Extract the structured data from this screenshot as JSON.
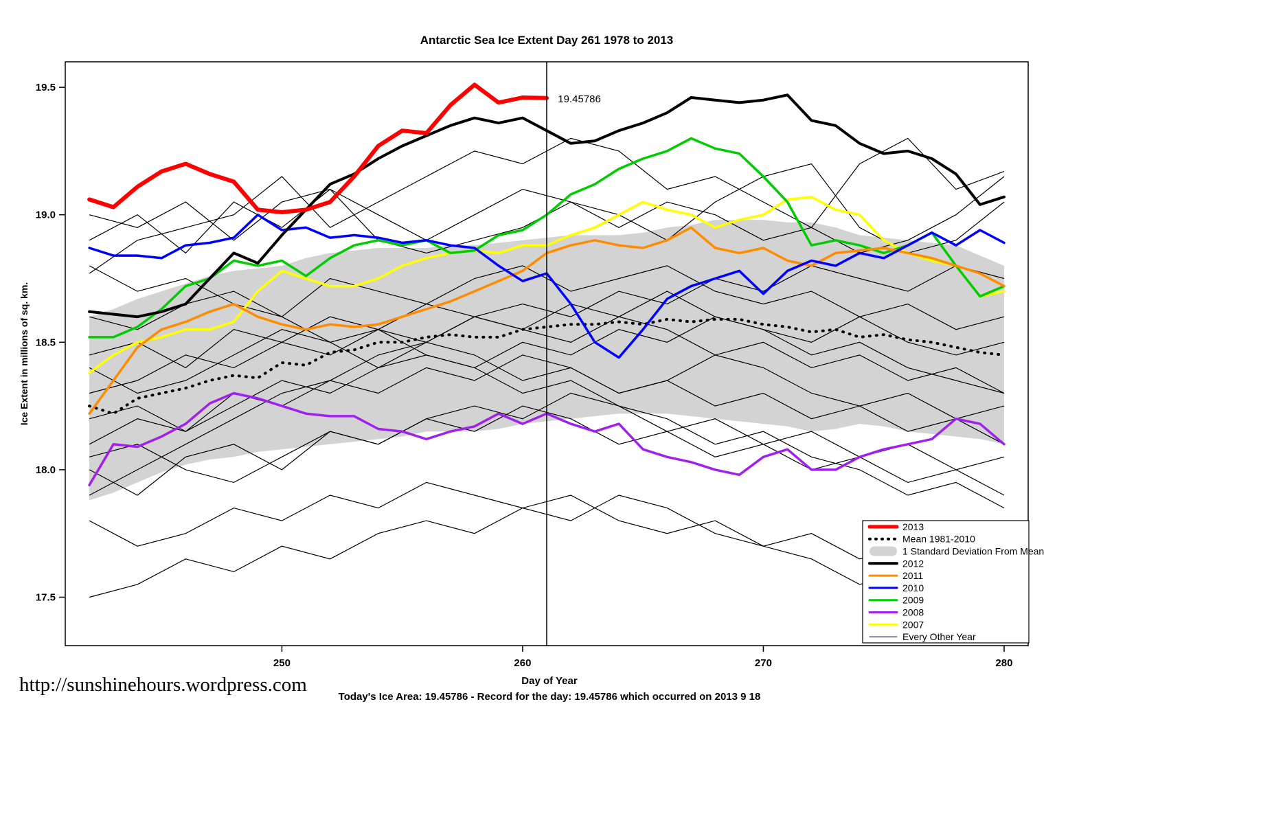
{
  "page": {
    "url_text": "http://sunshinehours.wordpress.com",
    "footer_line": "Today's Ice Area: 19.45786  - Record for the day: 19.45786 which occurred on 2013 9 18"
  },
  "chart_data": {
    "type": "line",
    "title": "Antarctic Sea Ice Extent Day 261 1978 to 2013",
    "xlabel": "Day of Year",
    "ylabel": "Ice Extent in millions of sq. km.",
    "xlim": [
      241,
      281
    ],
    "ylim": [
      17.31,
      19.6
    ],
    "x_ticks": [
      250,
      260,
      270,
      280
    ],
    "x_tick_labels": [
      "250",
      "260",
      "270",
      "280"
    ],
    "y_ticks": [
      17.5,
      18.0,
      18.5,
      19.0,
      19.5
    ],
    "y_tick_labels": [
      "17.5",
      "18.0",
      "18.5",
      "19.0",
      "19.5"
    ],
    "grid": false,
    "vline_day": 261,
    "annotation": {
      "text": "19.45786",
      "day": 261.35,
      "value": 19.455,
      "color": "#FF0000"
    },
    "band": {
      "label": "1 Standard Deviation From Mean",
      "color": "#D3D3D3",
      "start_day": 242,
      "step": 1,
      "upper": [
        18.6,
        18.63,
        18.67,
        18.7,
        18.73,
        18.76,
        18.78,
        18.79,
        18.8,
        18.83,
        18.85,
        18.86,
        18.87,
        18.87,
        18.87,
        18.88,
        18.88,
        18.89,
        18.9,
        18.91,
        18.92,
        18.92,
        18.92,
        18.93,
        18.95,
        18.96,
        18.98,
        18.98,
        18.98,
        18.97,
        18.97,
        18.95,
        18.92,
        18.91,
        18.9,
        18.89,
        18.88,
        18.84,
        18.8
      ],
      "lower": [
        17.88,
        17.91,
        17.95,
        17.99,
        18.02,
        18.04,
        18.05,
        18.07,
        18.08,
        18.09,
        18.1,
        18.11,
        18.12,
        18.13,
        18.15,
        18.15,
        18.15,
        18.16,
        18.18,
        18.19,
        18.2,
        18.21,
        18.22,
        18.22,
        18.22,
        18.21,
        18.2,
        18.19,
        18.18,
        18.17,
        18.15,
        18.16,
        18.18,
        18.17,
        18.15,
        18.14,
        18.13,
        18.12,
        18.1
      ]
    },
    "series": [
      {
        "name": "Mean 1981-2010",
        "color": "#000000",
        "width": 4,
        "dotted": true,
        "start_day": 242,
        "step": 1,
        "values": [
          18.25,
          18.22,
          18.28,
          18.3,
          18.32,
          18.35,
          18.37,
          18.36,
          18.42,
          18.41,
          18.46,
          18.47,
          18.5,
          18.5,
          18.52,
          18.53,
          18.52,
          18.52,
          18.55,
          18.56,
          18.57,
          18.57,
          18.58,
          18.57,
          18.59,
          18.58,
          18.59,
          18.59,
          18.57,
          18.56,
          18.54,
          18.55,
          18.52,
          18.53,
          18.51,
          18.5,
          18.48,
          18.46,
          18.45
        ]
      },
      {
        "name": "2007",
        "color": "#FFFF00",
        "width": 3.5,
        "dotted": false,
        "start_day": 242,
        "step": 1,
        "values": [
          18.38,
          18.45,
          18.5,
          18.52,
          18.55,
          18.55,
          18.58,
          18.7,
          18.78,
          18.75,
          18.72,
          18.72,
          18.75,
          18.8,
          18.83,
          18.85,
          18.86,
          18.85,
          18.88,
          18.88,
          18.92,
          18.95,
          19.0,
          19.05,
          19.02,
          19.0,
          18.95,
          18.98,
          19.0,
          19.06,
          19.07,
          19.02,
          19.0,
          18.9,
          18.85,
          18.82,
          18.8,
          18.68,
          18.7
        ]
      },
      {
        "name": "2008",
        "color": "#A020F0",
        "width": 3.5,
        "dotted": false,
        "start_day": 242,
        "step": 1,
        "values": [
          17.94,
          18.1,
          18.09,
          18.13,
          18.18,
          18.26,
          18.3,
          18.28,
          18.25,
          18.22,
          18.21,
          18.21,
          18.16,
          18.15,
          18.12,
          18.15,
          18.17,
          18.22,
          18.18,
          18.22,
          18.18,
          18.15,
          18.18,
          18.08,
          18.05,
          18.03,
          18.0,
          17.98,
          18.05,
          18.08,
          18.0,
          18.0,
          18.05,
          18.08,
          18.1,
          18.12,
          18.2,
          18.18,
          18.1
        ]
      },
      {
        "name": "2009",
        "color": "#00CC00",
        "width": 3.5,
        "dotted": false,
        "start_day": 242,
        "step": 1,
        "values": [
          18.52,
          18.52,
          18.56,
          18.63,
          18.72,
          18.75,
          18.82,
          18.8,
          18.82,
          18.76,
          18.83,
          18.88,
          18.9,
          18.88,
          18.9,
          18.85,
          18.86,
          18.92,
          18.94,
          19.0,
          19.08,
          19.12,
          19.18,
          19.22,
          19.25,
          19.3,
          19.26,
          19.24,
          19.15,
          19.05,
          18.88,
          18.9,
          18.88,
          18.85,
          18.88,
          18.93,
          18.8,
          18.68,
          18.72
        ]
      },
      {
        "name": "2011",
        "color": "#FF8C00",
        "width": 3.5,
        "dotted": false,
        "start_day": 242,
        "step": 1,
        "values": [
          18.22,
          18.35,
          18.48,
          18.55,
          18.58,
          18.62,
          18.65,
          18.6,
          18.57,
          18.55,
          18.57,
          18.56,
          18.57,
          18.6,
          18.63,
          18.66,
          18.7,
          18.74,
          18.78,
          18.85,
          18.88,
          18.9,
          18.88,
          18.87,
          18.9,
          18.95,
          18.87,
          18.85,
          18.87,
          18.82,
          18.8,
          18.85,
          18.86,
          18.87,
          18.85,
          18.83,
          18.8,
          18.77,
          18.72
        ]
      },
      {
        "name": "2010",
        "color": "#0000FF",
        "width": 3.5,
        "dotted": false,
        "start_day": 242,
        "step": 1,
        "values": [
          18.87,
          18.84,
          18.84,
          18.83,
          18.88,
          18.89,
          18.91,
          19.0,
          18.94,
          18.95,
          18.91,
          18.92,
          18.91,
          18.89,
          18.9,
          18.88,
          18.87,
          18.8,
          18.74,
          18.77,
          18.65,
          18.5,
          18.44,
          18.55,
          18.67,
          18.72,
          18.75,
          18.78,
          18.69,
          18.78,
          18.82,
          18.8,
          18.85,
          18.83,
          18.88,
          18.93,
          18.88,
          18.94,
          18.89
        ]
      },
      {
        "name": "2012",
        "color": "#000000",
        "width": 4,
        "dotted": false,
        "start_day": 242,
        "step": 1,
        "values": [
          18.62,
          18.61,
          18.6,
          18.62,
          18.65,
          18.75,
          18.85,
          18.81,
          18.92,
          19.02,
          19.12,
          19.16,
          19.22,
          19.27,
          19.31,
          19.35,
          19.38,
          19.36,
          19.38,
          19.33,
          19.28,
          19.29,
          19.33,
          19.36,
          19.4,
          19.46,
          19.45,
          19.44,
          19.45,
          19.47,
          19.37,
          19.35,
          19.28,
          19.24,
          19.25,
          19.22,
          19.16,
          19.04,
          19.07
        ]
      },
      {
        "name": "2013",
        "color": "#FF0000",
        "width": 6,
        "dotted": false,
        "start_day": 242,
        "step": 1,
        "values": [
          19.06,
          19.03,
          19.11,
          19.17,
          19.2,
          19.16,
          19.13,
          19.02,
          19.01,
          19.02,
          19.05,
          19.15,
          19.27,
          19.33,
          19.32,
          19.43,
          19.51,
          19.44,
          19.46,
          19.458
        ]
      }
    ],
    "other_years": {
      "label": "Every Other Year",
      "color": "#000000",
      "width": 1.2,
      "start_day": 242,
      "step": 2,
      "lines": [
        [
          18.77,
          18.9,
          18.95,
          19.0,
          19.15,
          18.95,
          19.05,
          19.15,
          19.25,
          19.2,
          19.3,
          19.25,
          19.1,
          19.15,
          19.05,
          18.95,
          19.2,
          19.3,
          19.1,
          19.17
        ],
        [
          19.0,
          18.95,
          19.05,
          18.9,
          19.05,
          19.1,
          18.9,
          18.85,
          18.9,
          18.95,
          19.05,
          19.0,
          18.9,
          19.05,
          19.15,
          19.2,
          18.95,
          18.85,
          18.9,
          19.05
        ],
        [
          18.6,
          18.55,
          18.65,
          18.7,
          18.6,
          18.75,
          18.7,
          18.65,
          18.75,
          18.8,
          18.7,
          18.75,
          18.8,
          18.7,
          18.65,
          18.7,
          18.6,
          18.65,
          18.55,
          18.6
        ],
        [
          18.45,
          18.5,
          18.4,
          18.55,
          18.5,
          18.6,
          18.55,
          18.65,
          18.6,
          18.55,
          18.65,
          18.6,
          18.7,
          18.6,
          18.55,
          18.5,
          18.6,
          18.5,
          18.45,
          18.5
        ],
        [
          18.3,
          18.35,
          18.45,
          18.4,
          18.5,
          18.45,
          18.55,
          18.5,
          18.6,
          18.55,
          18.5,
          18.6,
          18.55,
          18.45,
          18.5,
          18.4,
          18.45,
          18.35,
          18.4,
          18.3
        ],
        [
          18.2,
          18.25,
          18.15,
          18.3,
          18.25,
          18.35,
          18.3,
          18.4,
          18.35,
          18.45,
          18.4,
          18.3,
          18.35,
          18.25,
          18.3,
          18.2,
          18.25,
          18.15,
          18.2,
          18.1
        ],
        [
          18.0,
          17.9,
          18.05,
          18.1,
          18.0,
          18.15,
          18.1,
          18.2,
          18.15,
          18.25,
          18.2,
          18.1,
          18.15,
          18.05,
          18.1,
          18.0,
          18.05,
          17.95,
          18.0,
          17.9
        ],
        [
          17.8,
          17.7,
          17.75,
          17.85,
          17.8,
          17.9,
          17.85,
          17.95,
          17.9,
          17.85,
          17.9,
          17.8,
          17.75,
          17.8,
          17.7,
          17.75,
          17.65,
          17.7,
          17.6,
          17.65
        ],
        [
          17.5,
          17.55,
          17.65,
          17.6,
          17.7,
          17.65,
          17.75,
          17.8,
          17.75,
          17.85,
          17.8,
          17.9,
          17.85,
          17.75,
          17.7,
          17.65,
          17.55,
          17.6,
          17.5,
          17.55
        ],
        [
          17.9,
          18.0,
          18.1,
          18.2,
          18.3,
          18.35,
          18.45,
          18.5,
          18.6,
          18.65,
          18.6,
          18.7,
          18.65,
          18.75,
          18.7,
          18.8,
          18.75,
          18.7,
          18.8,
          18.75
        ],
        [
          18.8,
          18.7,
          18.75,
          18.65,
          18.6,
          18.5,
          18.55,
          18.45,
          18.4,
          18.3,
          18.35,
          18.25,
          18.2,
          18.1,
          18.15,
          18.05,
          18.0,
          17.9,
          17.95,
          17.85
        ],
        [
          18.1,
          18.2,
          18.15,
          18.25,
          18.35,
          18.3,
          18.4,
          18.45,
          18.4,
          18.5,
          18.45,
          18.55,
          18.5,
          18.6,
          18.55,
          18.45,
          18.5,
          18.4,
          18.35,
          18.3
        ],
        [
          18.9,
          19.0,
          18.85,
          19.05,
          18.95,
          19.1,
          19.0,
          18.9,
          19.0,
          19.1,
          19.05,
          18.95,
          19.05,
          19.0,
          18.9,
          18.95,
          18.85,
          18.9,
          19.0,
          19.15
        ],
        [
          18.4,
          18.3,
          18.35,
          18.45,
          18.55,
          18.5,
          18.4,
          18.5,
          18.45,
          18.35,
          18.4,
          18.3,
          18.35,
          18.45,
          18.4,
          18.3,
          18.25,
          18.3,
          18.2,
          18.25
        ],
        [
          18.05,
          18.1,
          18.0,
          17.95,
          18.05,
          18.15,
          18.1,
          18.2,
          18.25,
          18.2,
          18.3,
          18.25,
          18.15,
          18.2,
          18.1,
          18.15,
          18.05,
          18.1,
          18.0,
          18.05
        ]
      ]
    },
    "legend": [
      {
        "label": "2013",
        "swatch": "line",
        "color": "#FF0000",
        "lw": 5
      },
      {
        "label": "Mean 1981-2010",
        "swatch": "dotted",
        "color": "#000000",
        "lw": 4
      },
      {
        "label": "1 Standard Deviation From Mean",
        "swatch": "band",
        "color": "#D3D3D3",
        "lw": 0
      },
      {
        "label": "2012",
        "swatch": "line",
        "color": "#000000",
        "lw": 4
      },
      {
        "label": "2011",
        "swatch": "line",
        "color": "#FF8C00",
        "lw": 3
      },
      {
        "label": "2010",
        "swatch": "line",
        "color": "#0000FF",
        "lw": 3
      },
      {
        "label": "2009",
        "swatch": "line",
        "color": "#00CC00",
        "lw": 3
      },
      {
        "label": "2008",
        "swatch": "line",
        "color": "#A020F0",
        "lw": 3
      },
      {
        "label": "2007",
        "swatch": "line",
        "color": "#FFFF00",
        "lw": 3
      },
      {
        "label": "Every Other Year",
        "swatch": "line",
        "color": "#000000",
        "lw": 1
      }
    ]
  }
}
